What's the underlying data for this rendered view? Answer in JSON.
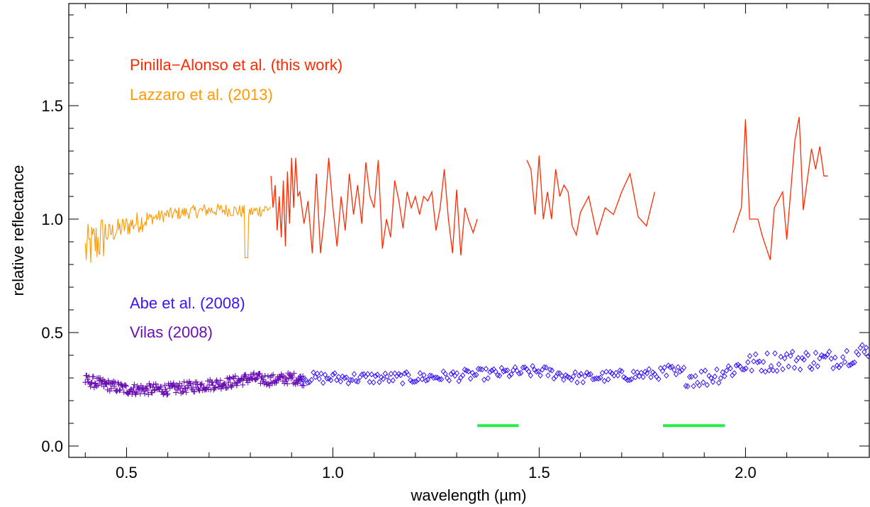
{
  "chart_data": {
    "type": "line",
    "xlabel": "wavelength (µm)",
    "ylabel": "relative reflectance",
    "xlim": [
      0.36,
      2.3
    ],
    "ylim": [
      -0.05,
      1.95
    ],
    "xticks": [
      0.5,
      1.0,
      1.5,
      2.0
    ],
    "xtick_labels": [
      "0.5",
      "1.0",
      "1.5",
      "2.0"
    ],
    "yticks": [
      0.0,
      0.5,
      1.0,
      1.5
    ],
    "ytick_labels": [
      "0.0",
      "0.5",
      "1.0",
      "1.5"
    ],
    "grid": false,
    "legend_placement": "left",
    "series": [
      {
        "name": "Pinilla−Alonso et al. (this work)",
        "color": "#ff2a00",
        "kind": "line",
        "segments": [
          {
            "x": [
              0.85,
              0.855,
              0.86,
              0.865,
              0.87,
              0.875,
              0.88,
              0.885,
              0.89,
              0.895,
              0.9,
              0.905,
              0.91,
              0.915,
              0.92,
              0.93,
              0.94,
              0.95,
              0.96,
              0.97,
              0.98,
              0.99,
              1.0,
              1.01,
              1.02,
              1.03,
              1.04,
              1.05,
              1.06,
              1.07,
              1.08,
              1.09,
              1.1,
              1.11,
              1.12,
              1.13,
              1.14,
              1.15,
              1.16,
              1.17,
              1.18,
              1.19,
              1.2,
              1.21,
              1.22,
              1.23,
              1.24,
              1.25,
              1.26,
              1.27,
              1.28,
              1.29,
              1.3,
              1.31,
              1.32,
              1.33,
              1.34,
              1.35
            ],
            "y": [
              1.19,
              1.05,
              1.15,
              0.95,
              1.1,
              0.92,
              1.17,
              0.88,
              1.21,
              0.98,
              1.27,
              1.05,
              1.27,
              1.1,
              1.12,
              0.98,
              1.08,
              0.85,
              1.2,
              0.85,
              1.02,
              1.27,
              1.05,
              0.88,
              1.1,
              0.95,
              1.2,
              1.02,
              1.15,
              0.98,
              1.25,
              1.1,
              1.05,
              1.26,
              0.87,
              1.0,
              0.92,
              1.17,
              1.08,
              0.96,
              1.12,
              1.05,
              1.1,
              1.02,
              1.1,
              1.08,
              1.12,
              0.95,
              1.05,
              1.22,
              1.0,
              0.85,
              1.13,
              0.84,
              1.05,
              0.99,
              0.94,
              1.0
            ]
          },
          {
            "x": [
              1.47,
              1.48,
              1.49,
              1.5,
              1.51,
              1.52,
              1.53,
              1.54,
              1.55,
              1.56,
              1.57,
              1.58,
              1.59,
              1.6,
              1.62,
              1.64,
              1.66,
              1.68,
              1.7,
              1.72,
              1.74,
              1.76,
              1.78
            ],
            "y": [
              1.26,
              1.22,
              1.02,
              1.28,
              1.0,
              1.12,
              1.0,
              1.22,
              1.1,
              1.15,
              1.12,
              0.97,
              0.93,
              1.03,
              1.1,
              0.93,
              1.05,
              1.02,
              1.12,
              1.2,
              1.01,
              0.97,
              1.12
            ]
          },
          {
            "x": [
              1.97,
              1.99,
              2.0,
              2.01,
              2.03,
              2.04,
              2.06,
              2.07,
              2.09,
              2.1,
              2.12,
              2.13,
              2.14,
              2.16,
              2.17,
              2.18,
              2.19,
              2.2
            ],
            "y": [
              0.94,
              1.05,
              1.44,
              1.0,
              1.0,
              0.93,
              0.82,
              1.05,
              1.12,
              0.91,
              1.35,
              1.45,
              1.04,
              1.31,
              1.22,
              1.32,
              1.19,
              1.19
            ]
          }
        ]
      },
      {
        "name": "Lazzaro et al. (2013)",
        "color": "#ff9900",
        "kind": "line",
        "x_range": [
          0.4,
          0.85
        ],
        "approx_profile": [
          [
            0.4,
            0.86
          ],
          [
            0.45,
            0.93
          ],
          [
            0.5,
            0.97
          ],
          [
            0.55,
            1.0
          ],
          [
            0.6,
            1.02
          ],
          [
            0.65,
            1.03
          ],
          [
            0.7,
            1.04
          ],
          [
            0.75,
            1.04
          ],
          [
            0.8,
            1.03
          ],
          [
            0.85,
            1.05
          ]
        ],
        "noise_note": "high-frequency noisy spectrum, larger scatter below 0.45 µm"
      },
      {
        "name": "Abe et al. (2008)",
        "color": "#3a13ff",
        "kind": "scatter-diamond",
        "x_range": [
          0.92,
          2.3
        ],
        "approx_profile": [
          [
            0.92,
            0.3
          ],
          [
            1.0,
            0.3
          ],
          [
            1.1,
            0.3
          ],
          [
            1.2,
            0.3
          ],
          [
            1.3,
            0.31
          ],
          [
            1.4,
            0.32
          ],
          [
            1.5,
            0.33
          ],
          [
            1.6,
            0.3
          ],
          [
            1.7,
            0.31
          ],
          [
            1.8,
            0.32
          ],
          [
            1.9,
            0.3
          ],
          [
            2.0,
            0.36
          ],
          [
            2.1,
            0.38
          ],
          [
            2.2,
            0.38
          ],
          [
            2.3,
            0.42
          ]
        ]
      },
      {
        "name": "Vilas (2008)",
        "color": "#6a0fb3",
        "kind": "scatter-plus",
        "x_range": [
          0.4,
          0.93
        ],
        "approx_profile": [
          [
            0.4,
            0.29
          ],
          [
            0.45,
            0.27
          ],
          [
            0.5,
            0.25
          ],
          [
            0.55,
            0.25
          ],
          [
            0.6,
            0.25
          ],
          [
            0.65,
            0.26
          ],
          [
            0.7,
            0.27
          ],
          [
            0.75,
            0.28
          ],
          [
            0.8,
            0.3
          ],
          [
            0.85,
            0.29
          ],
          [
            0.9,
            0.3
          ],
          [
            0.93,
            0.29
          ]
        ]
      }
    ],
    "annotations": [
      {
        "type": "horizontal-bar",
        "color": "#22ee44",
        "x": [
          1.35,
          1.45
        ],
        "y": 0.09
      },
      {
        "type": "horizontal-bar",
        "color": "#22ee44",
        "x": [
          1.8,
          1.95
        ],
        "y": 0.09
      }
    ]
  }
}
